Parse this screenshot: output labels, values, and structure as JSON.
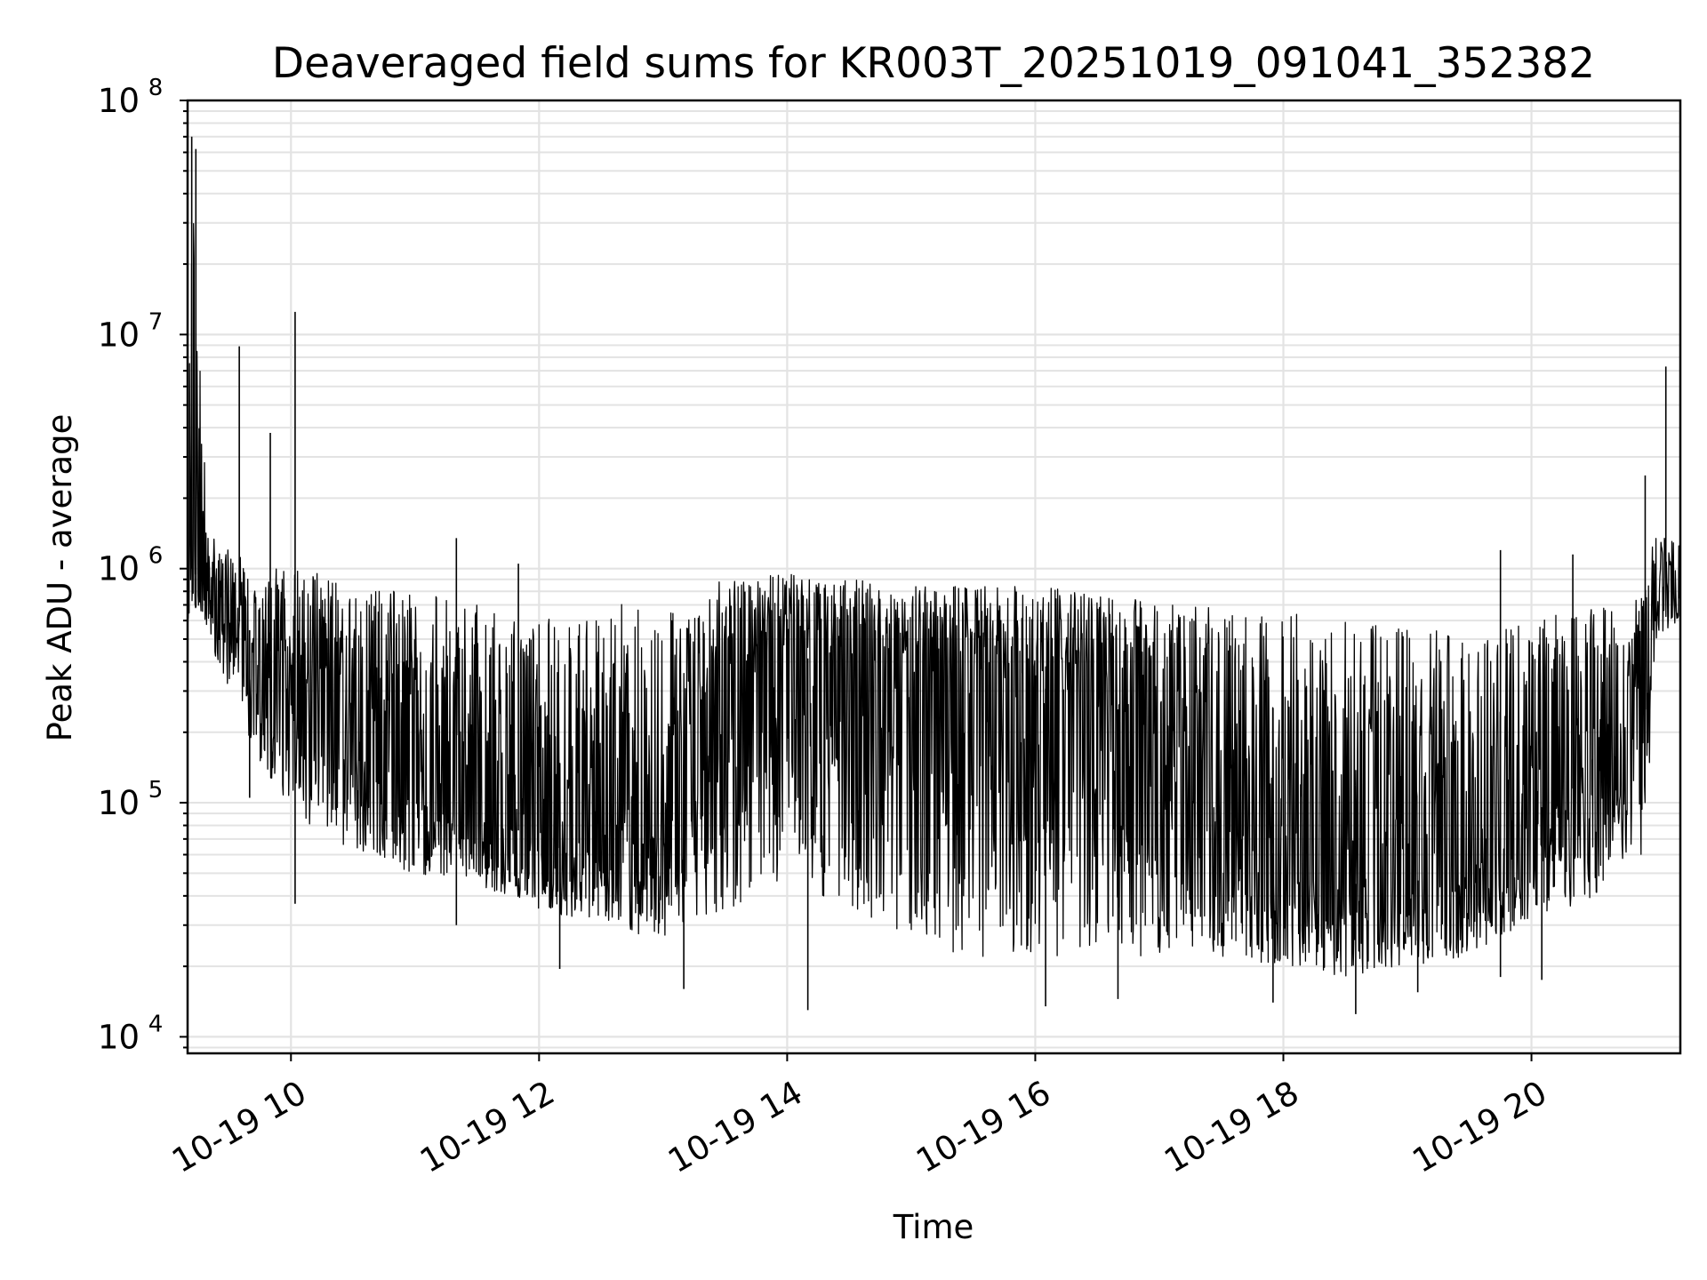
{
  "chart_data": {
    "type": "line",
    "title": "Deaveraged field sums for KR003T_20251019_091041_352382",
    "xlabel": "Time",
    "ylabel": "Peak ADU - average",
    "yscale": "log",
    "ylim": [
      8500,
      100000000
    ],
    "xlim": [
      "2025-10-19 09:10",
      "2025-10-19 21:12"
    ],
    "grid": true,
    "x_ticks": [
      {
        "value": "2025-10-19 10:00",
        "label": "10-19 10"
      },
      {
        "value": "2025-10-19 12:00",
        "label": "10-19 12"
      },
      {
        "value": "2025-10-19 14:00",
        "label": "10-19 14"
      },
      {
        "value": "2025-10-19 16:00",
        "label": "10-19 16"
      },
      {
        "value": "2025-10-19 18:00",
        "label": "10-19 18"
      },
      {
        "value": "2025-10-19 20:00",
        "label": "10-19 20"
      }
    ],
    "y_ticks": [
      {
        "value": 10000,
        "base": "10",
        "exp": "4"
      },
      {
        "value": 100000,
        "base": "10",
        "exp": "5"
      },
      {
        "value": 1000000,
        "base": "10",
        "exp": "6"
      },
      {
        "value": 10000000,
        "base": "10",
        "exp": "7"
      },
      {
        "value": 100000000,
        "base": "10",
        "exp": "8"
      }
    ],
    "series": [
      {
        "color": "#000000",
        "envelope": {
          "x": [
            "2025-10-19 09:10",
            "2025-10-19 09:12",
            "2025-10-19 09:20",
            "2025-10-19 09:30",
            "2025-10-19 09:45",
            "2025-10-19 10:00",
            "2025-10-19 10:30",
            "2025-10-19 11:00",
            "2025-10-19 11:30",
            "2025-10-19 12:00",
            "2025-10-19 12:30",
            "2025-10-19 13:00",
            "2025-10-19 13:30",
            "2025-10-19 14:00",
            "2025-10-19 14:30",
            "2025-10-19 15:00",
            "2025-10-19 15:30",
            "2025-10-19 16:00",
            "2025-10-19 16:30",
            "2025-10-19 17:00",
            "2025-10-19 17:30",
            "2025-10-19 18:00",
            "2025-10-19 18:30",
            "2025-10-19 19:00",
            "2025-10-19 19:30",
            "2025-10-19 20:00",
            "2025-10-19 20:30",
            "2025-10-19 20:55",
            "2025-10-19 21:00",
            "2025-10-19 21:12"
          ],
          "high": [
            1100000,
            60000000,
            1400000,
            1200000,
            1000000,
            1000000,
            900000,
            800000,
            700000,
            600000,
            700000,
            750000,
            900000,
            950000,
            900000,
            850000,
            850000,
            850000,
            800000,
            750000,
            700000,
            650000,
            600000,
            550000,
            550000,
            600000,
            700000,
            800000,
            1500000,
            1300000
          ],
          "mid": [
            800000,
            1000000,
            800000,
            650000,
            500000,
            350000,
            220000,
            130000,
            90000,
            70000,
            75000,
            110000,
            250000,
            420000,
            400000,
            380000,
            360000,
            320000,
            250000,
            170000,
            100000,
            55000,
            45000,
            45000,
            55000,
            90000,
            130000,
            250000,
            1000000,
            800000
          ],
          "low": [
            600000,
            700000,
            500000,
            300000,
            150000,
            90000,
            60000,
            50000,
            45000,
            35000,
            30000,
            25000,
            35000,
            45000,
            35000,
            25000,
            22000,
            22000,
            22000,
            22000,
            22000,
            20000,
            18000,
            20000,
            22000,
            30000,
            40000,
            60000,
            500000,
            600000
          ]
        },
        "spikes": [
          {
            "x": "2025-10-19 09:12",
            "y": 70000000
          },
          {
            "x": "2025-10-19 09:14",
            "y": 62000000
          },
          {
            "x": "2025-10-19 09:35",
            "y": 8900000
          },
          {
            "x": "2025-10-19 09:50",
            "y": 3800000
          },
          {
            "x": "2025-10-19 10:02",
            "y": 12500000
          },
          {
            "x": "2025-10-19 10:02",
            "y": 37000
          },
          {
            "x": "2025-10-19 09:40",
            "y": 105000
          },
          {
            "x": "2025-10-19 11:20",
            "y": 1350000
          },
          {
            "x": "2025-10-19 11:20",
            "y": 30000
          },
          {
            "x": "2025-10-19 11:50",
            "y": 1050000
          },
          {
            "x": "2025-10-19 12:10",
            "y": 19500
          },
          {
            "x": "2025-10-19 13:10",
            "y": 16000
          },
          {
            "x": "2025-10-19 14:10",
            "y": 13000
          },
          {
            "x": "2025-10-19 16:05",
            "y": 13500
          },
          {
            "x": "2025-10-19 16:40",
            "y": 14500
          },
          {
            "x": "2025-10-19 17:55",
            "y": 14000
          },
          {
            "x": "2025-10-19 18:35",
            "y": 12500
          },
          {
            "x": "2025-10-19 19:05",
            "y": 15500
          },
          {
            "x": "2025-10-19 19:45",
            "y": 1200000
          },
          {
            "x": "2025-10-19 19:45",
            "y": 18000
          },
          {
            "x": "2025-10-19 20:05",
            "y": 17500
          },
          {
            "x": "2025-10-19 20:20",
            "y": 1150000
          },
          {
            "x": "2025-10-19 20:53",
            "y": 120000
          },
          {
            "x": "2025-10-19 20:55",
            "y": 2500000
          },
          {
            "x": "2025-10-19 21:05",
            "y": 7300000
          }
        ]
      }
    ]
  }
}
